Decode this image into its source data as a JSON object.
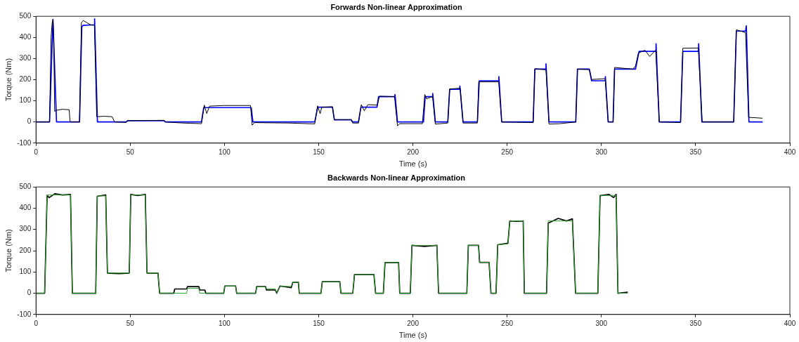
{
  "chart_data": [
    {
      "type": "line",
      "title": "Forwards Non-linear Approximation",
      "xlabel": "Time (s)",
      "ylabel": "Torque (Nm)",
      "xlim": [
        0,
        400
      ],
      "xticks": [
        0,
        50,
        100,
        150,
        200,
        250,
        300,
        350,
        400
      ],
      "ylim": [
        -100,
        500
      ],
      "yticks": [
        -100,
        0,
        100,
        200,
        300,
        400,
        500
      ],
      "grid": false,
      "marker": "none",
      "line_style": "solid",
      "series": [
        {
          "color": "#000000",
          "x": [
            0,
            7.2,
            8.0,
            8.6,
            9.0,
            9.4,
            9.9,
            10.5,
            14,
            17.6,
            18.1,
            23.1,
            24.1,
            25.1,
            27,
            29.1,
            31.0,
            32.2,
            36,
            40.4,
            41.7,
            47.9,
            48.5,
            68.0,
            68.6,
            78,
            87.8,
            89.3,
            90.6,
            92.1,
            100,
            113.8,
            114.7,
            116,
            134.5,
            147.9,
            149.4,
            150.8,
            151.6,
            157.3,
            158.3,
            167.3,
            168,
            171.1,
            172.6,
            174.2,
            176.1,
            181.2,
            182.2,
            190.2,
            191.8,
            193,
            205,
            206.3,
            207.2,
            210.4,
            211.9,
            218.5,
            219.5,
            225.1,
            226.6,
            234.2,
            234.9,
            245.5,
            247.1,
            263.8,
            264.7,
            270.6,
            272.2,
            277.9,
            286.4,
            287.3,
            293.6,
            294.8,
            302,
            303.6,
            306.2,
            307,
            316.8,
            318.1,
            319.6,
            323.1,
            325.6,
            328.8,
            330.7,
            342,
            343.2,
            351.4,
            353.5,
            370.2,
            371.6,
            376.5,
            378.1,
            385.3
          ],
          "values": [
            0,
            0,
            400,
            470,
            485,
            400,
            50,
            55,
            60,
            58,
            0,
            0,
            470,
            480,
            470,
            459,
            458,
            25,
            27,
            25,
            0,
            -2,
            6,
            8,
            0,
            -5,
            -8,
            80,
            40,
            75,
            78,
            78,
            -15,
            -3,
            -5,
            -9,
            76,
            39,
            70,
            72,
            11,
            11,
            -5,
            -5,
            82,
            53,
            82,
            80,
            122,
            120,
            -18,
            -8,
            -8,
            130,
            110,
            120,
            -10,
            -5,
            156,
            160,
            -5,
            -5,
            190,
            190,
            0,
            -3,
            252,
            247,
            -10,
            -8,
            0,
            250,
            248,
            201,
            205,
            0,
            0,
            258,
            250,
            265,
            326,
            340,
            310,
            340,
            0,
            -3,
            349,
            350,
            0,
            0,
            436,
            423,
            22,
            18
          ]
        },
        {
          "color": "#0000ff",
          "x": [
            0,
            7.2,
            9.0,
            10.9,
            23.1,
            24.3,
            25,
            31.0,
            31.1,
            32.6,
            47.9,
            48.5,
            68.0,
            68.6,
            87.8,
            89,
            114.2,
            115.1,
            147.9,
            149.5,
            157.3,
            158.3,
            167.3,
            168,
            171.1,
            172.4,
            180.9,
            181.8,
            190.4,
            190.5,
            191.8,
            205.6,
            206.5,
            210.4,
            210.5,
            211.9,
            218.5,
            219.5,
            224.8,
            224.9,
            226.6,
            234.2,
            235.2,
            245.5,
            245.6,
            247.1,
            263.8,
            264.7,
            270.5,
            270.6,
            272.2,
            286.4,
            287.3,
            293.6,
            294.8,
            302,
            302.1,
            303.6,
            306.2,
            307,
            318.1,
            320,
            328.9,
            329,
            330.7,
            342,
            343.2,
            351.5,
            351.6,
            353.3,
            370.2,
            371.6,
            376.5,
            376.9,
            378.3,
            385.3
          ],
          "values": [
            0,
            0,
            485,
            0,
            0,
            450,
            457,
            460,
            488,
            0,
            0,
            6,
            6,
            0,
            0,
            68,
            68,
            0,
            0,
            70,
            70,
            10,
            10,
            0,
            0,
            70,
            70,
            120,
            120,
            130,
            0,
            0,
            120,
            120,
            135,
            0,
            0,
            155,
            155,
            170,
            0,
            0,
            195,
            195,
            215,
            0,
            0,
            250,
            250,
            275,
            0,
            0,
            250,
            250,
            195,
            195,
            215,
            0,
            0,
            250,
            250,
            334,
            334,
            370,
            0,
            0,
            334,
            334,
            370,
            0,
            0,
            430,
            430,
            455,
            0,
            0
          ]
        }
      ]
    },
    {
      "type": "line",
      "title": "Backwards Non-linear Approximation",
      "xlabel": "Time (s)",
      "ylabel": "Torque (Nm)",
      "xlim": [
        0,
        400
      ],
      "xticks": [
        0,
        50,
        100,
        150,
        200,
        250,
        300,
        350,
        400
      ],
      "ylim": [
        -100,
        500
      ],
      "yticks": [
        -100,
        0,
        100,
        200,
        300,
        400,
        500
      ],
      "grid": false,
      "marker": "none",
      "line_style": "solid",
      "series": [
        {
          "color": "#2ca02c",
          "x": [
            0,
            4.6,
            5.9,
            18.3,
            19.3,
            31.7,
            32.5,
            37,
            37.9,
            49.5,
            50.3,
            58,
            58.9,
            64.7,
            65.6,
            79.9,
            80.4,
            86.4,
            86.9,
            99.6,
            100.2,
            105.9,
            106.5,
            116.5,
            117.1,
            121.8,
            122.3,
            127,
            127.7,
            129.5,
            135.4,
            136.3,
            139.2,
            139.7,
            151.2,
            151.9,
            161.2,
            161.8,
            168.1,
            169,
            179.3,
            180.2,
            184.3,
            185.2,
            192.4,
            193,
            198.6,
            199.5,
            212.7,
            213.6,
            228.6,
            229.4,
            234.8,
            235.4,
            240.4,
            241.4,
            244.1,
            245,
            250.4,
            251.4,
            258.5,
            259.1,
            270.9,
            271.8,
            284.6,
            286.3,
            298.1,
            299.3,
            307.8,
            308.8,
            313.8
          ],
          "values": [
            0,
            0,
            462,
            462,
            0,
            0,
            458,
            458,
            95,
            95,
            462,
            462,
            95,
            95,
            0,
            0,
            23,
            23,
            0,
            0,
            34,
            34,
            0,
            0,
            30,
            30,
            20,
            20,
            0,
            32,
            32,
            52,
            52,
            0,
            0,
            54,
            54,
            0,
            0,
            88,
            88,
            0,
            0,
            144,
            144,
            0,
            0,
            225,
            225,
            0,
            0,
            225,
            225,
            145,
            145,
            0,
            0,
            228,
            232,
            340,
            340,
            0,
            0,
            340,
            340,
            0,
            0,
            460,
            460,
            0,
            0
          ]
        },
        {
          "color": "#000000",
          "x": [
            0,
            4.6,
            5.9,
            7,
            10,
            14,
            18.3,
            19.3,
            25,
            31.7,
            32.5,
            37,
            37.9,
            44,
            49.5,
            50.3,
            54,
            58,
            58.9,
            64.7,
            65.6,
            73.1,
            73.6,
            79.9,
            80.4,
            86.4,
            86.9,
            89.6,
            90.1,
            99.6,
            100.2,
            105.9,
            106.5,
            116.5,
            117.1,
            121.8,
            122.3,
            127,
            127.7,
            129.5,
            135.4,
            136.3,
            139.2,
            139.7,
            151.2,
            151.9,
            161.2,
            161.8,
            168.1,
            169,
            179.3,
            180.2,
            184.3,
            185.2,
            192.4,
            193,
            198.6,
            199.5,
            206,
            212.7,
            213.6,
            228.6,
            229.4,
            234.8,
            235.4,
            240.4,
            241.4,
            244.1,
            245,
            250.4,
            251.4,
            255,
            258.5,
            259.1,
            270.9,
            271.8,
            277.1,
            281.5,
            284.6,
            286.3,
            298.1,
            299.3,
            304,
            306.5,
            307.8,
            308.8,
            313.8
          ],
          "values": [
            0,
            0,
            460,
            450,
            468,
            462,
            465,
            0,
            0,
            0,
            456,
            462,
            95,
            92,
            95,
            465,
            460,
            465,
            95,
            95,
            0,
            0,
            20,
            20,
            31,
            31,
            15,
            15,
            0,
            0,
            34,
            34,
            0,
            0,
            31,
            31,
            15,
            15,
            0,
            34,
            26,
            52,
            52,
            0,
            0,
            54,
            54,
            0,
            0,
            88,
            88,
            0,
            0,
            144,
            144,
            0,
            0,
            225,
            220,
            225,
            0,
            0,
            225,
            225,
            145,
            145,
            0,
            0,
            228,
            235,
            340,
            338,
            340,
            0,
            0,
            330,
            352,
            340,
            350,
            0,
            0,
            459,
            465,
            450,
            465,
            0,
            5
          ]
        }
      ]
    }
  ]
}
